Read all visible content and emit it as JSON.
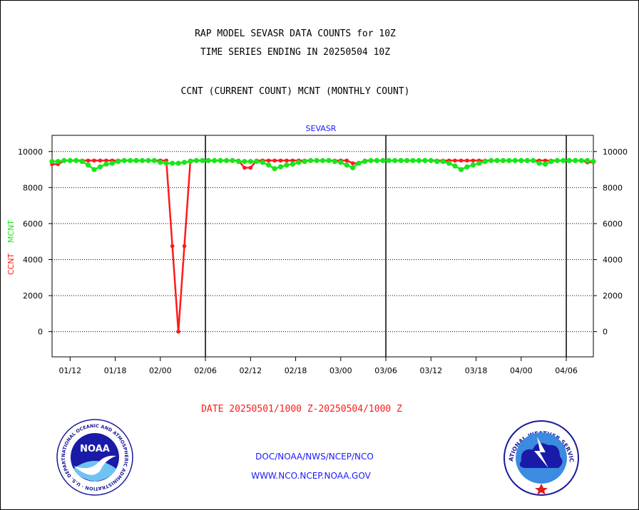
{
  "header": {
    "title_line1": "RAP MODEL SEVASR DATA COUNTS for 10Z",
    "title_line2": "TIME SERIES ENDING IN 20250504 10Z",
    "subtitle": "CCNT (CURRENT COUNT) MCNT (MONTHLY COUNT)"
  },
  "footer": {
    "date_range": "DATE 20250501/1000 Z-20250504/1000 Z",
    "org_path": "DOC/NOAA/NWS/NCEP/NCO",
    "website": "WWW.NCO.NCEP.NOAA.GOV"
  },
  "logos": {
    "noaa_text": "NOAA",
    "noaa_ring_text": "NATIONAL OCEANIC AND ATMOSPHERIC ADMINISTRATION · U.S. DEPARTMENT OF COMMERCE ·",
    "nws_ring_text": "NATIONAL WEATHER SERVICE"
  },
  "colors": {
    "ccnt": "#ff1a1a",
    "mcnt": "#19e619",
    "title_text": "#000000",
    "chart_label": "#1a1aff",
    "footer_date": "#ff1a1a",
    "footer_links": "#1a1aff"
  },
  "chart_data": {
    "type": "line",
    "title": "SEVASR",
    "ylabel_ccnt": "CCNT",
    "ylabel_mcnt": "MCNT",
    "ylim": [
      -1400,
      10900
    ],
    "yticks": [
      0,
      2000,
      4000,
      6000,
      8000,
      10000
    ],
    "ytick_labels": [
      "0",
      "2000",
      "4000",
      "6000",
      "8000",
      "10000"
    ],
    "xlim": [
      0,
      90
    ],
    "xticks": [
      3,
      10.5,
      18,
      25.5,
      33,
      40.5,
      48,
      55.5,
      63,
      70.5,
      78,
      85.5
    ],
    "xtick_labels": [
      "01/12",
      "01/18",
      "02/00",
      "02/06",
      "02/12",
      "02/18",
      "03/00",
      "03/06",
      "03/12",
      "03/18",
      "04/00",
      "04/06"
    ],
    "day_separators": [
      25.5,
      55.5,
      85.5
    ],
    "grid": "horizontal-dotted",
    "series": [
      {
        "name": "CCNT",
        "x": [
          0,
          1,
          2,
          3,
          4,
          5,
          6,
          7,
          8,
          9,
          10,
          11,
          12,
          13,
          14,
          15,
          16,
          17,
          18,
          19,
          20,
          21,
          22,
          23,
          24,
          25,
          26,
          27,
          28,
          29,
          30,
          31,
          32,
          33,
          34,
          35,
          36,
          37,
          38,
          39,
          40,
          41,
          42,
          43,
          44,
          45,
          46,
          47,
          48,
          49,
          50,
          51,
          52,
          53,
          54,
          55,
          56,
          57,
          58,
          59,
          60,
          61,
          62,
          63,
          64,
          65,
          66,
          67,
          68,
          69,
          70,
          71,
          72,
          73,
          74,
          75,
          76,
          77,
          78,
          79,
          80,
          81,
          82,
          83,
          84,
          85,
          86,
          87,
          88,
          89,
          90
        ],
        "values": [
          9300,
          9300,
          9500,
          9500,
          9500,
          9500,
          9500,
          9500,
          9500,
          9500,
          9500,
          9500,
          9500,
          9500,
          9500,
          9500,
          9500,
          9500,
          9500,
          9500,
          4750,
          0,
          4750,
          9500,
          9500,
          9500,
          9500,
          9500,
          9500,
          9500,
          9500,
          9500,
          9100,
          9100,
          9500,
          9500,
          9500,
          9500,
          9500,
          9500,
          9500,
          9500,
          9500,
          9500,
          9500,
          9500,
          9500,
          9500,
          9500,
          9500,
          9350,
          9350,
          9500,
          9500,
          9500,
          9500,
          9500,
          9500,
          9500,
          9500,
          9500,
          9500,
          9500,
          9500,
          9500,
          9500,
          9500,
          9500,
          9500,
          9500,
          9500,
          9500,
          9500,
          9500,
          9500,
          9500,
          9500,
          9500,
          9500,
          9500,
          9500,
          9500,
          9500,
          9500,
          9500,
          9500,
          9500,
          9500,
          9500,
          9400,
          9400
        ]
      },
      {
        "name": "MCNT",
        "x": [
          0,
          1,
          2,
          3,
          4,
          5,
          6,
          7,
          8,
          9,
          10,
          11,
          12,
          13,
          14,
          15,
          16,
          17,
          18,
          19,
          20,
          21,
          22,
          23,
          24,
          25,
          26,
          27,
          28,
          29,
          30,
          31,
          32,
          33,
          34,
          35,
          36,
          37,
          38,
          39,
          40,
          41,
          42,
          43,
          44,
          45,
          46,
          47,
          48,
          49,
          50,
          51,
          52,
          53,
          54,
          55,
          56,
          57,
          58,
          59,
          60,
          61,
          62,
          63,
          64,
          65,
          66,
          67,
          68,
          69,
          70,
          71,
          72,
          73,
          74,
          75,
          76,
          77,
          78,
          79,
          80,
          81,
          82,
          83,
          84,
          85,
          86,
          87,
          88,
          89,
          90
        ],
        "values": [
          9450,
          9450,
          9500,
          9500,
          9500,
          9450,
          9250,
          9000,
          9150,
          9300,
          9350,
          9450,
          9500,
          9500,
          9500,
          9500,
          9500,
          9500,
          9400,
          9350,
          9350,
          9350,
          9400,
          9450,
          9500,
          9500,
          9500,
          9500,
          9500,
          9500,
          9500,
          9450,
          9450,
          9450,
          9450,
          9400,
          9250,
          9050,
          9150,
          9250,
          9300,
          9400,
          9450,
          9500,
          9500,
          9500,
          9500,
          9450,
          9400,
          9250,
          9100,
          9350,
          9450,
          9500,
          9500,
          9500,
          9500,
          9500,
          9500,
          9500,
          9500,
          9500,
          9500,
          9500,
          9450,
          9450,
          9350,
          9200,
          9000,
          9150,
          9250,
          9350,
          9450,
          9500,
          9500,
          9500,
          9500,
          9500,
          9500,
          9500,
          9500,
          9350,
          9300,
          9450,
          9500,
          9500,
          9500,
          9500,
          9500,
          9500,
          9450
        ]
      }
    ]
  }
}
